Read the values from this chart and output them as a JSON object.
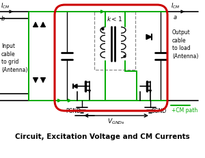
{
  "title": "Circuit, Excitation Voltage and CM Currents",
  "green": "#00aa00",
  "red": "#cc0000",
  "black": "#000000",
  "gray": "#888888",
  "bg": "#ffffff",
  "pgnd_label": "PGND",
  "sgnd_label": "SGND",
  "vgnds_label": "V_{GNDs}",
  "cm_path_label": "+CM path",
  "output_label": "Output\ncable\nto load\n(Antenna)",
  "input_label": "Input\ncable\nto grid\n(Antenna)",
  "k_label": "k < 1",
  "a_label": "a",
  "b_label": "b"
}
